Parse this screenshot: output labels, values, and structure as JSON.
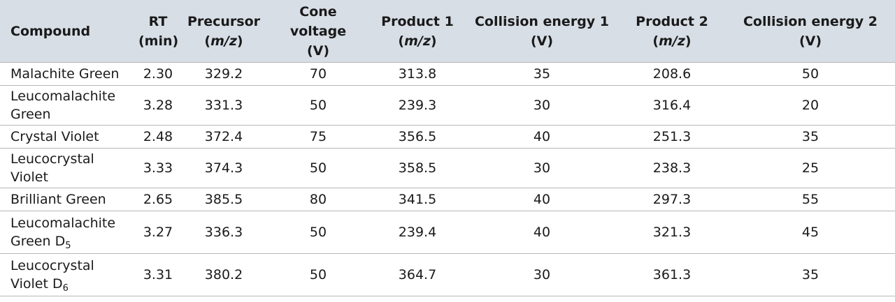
{
  "table": {
    "headers": [
      {
        "line1": "Compound",
        "line2": ""
      },
      {
        "line1": "RT",
        "line2": "(min)"
      },
      {
        "line1": "Precursor",
        "line2_pre": "(",
        "line2_ital": "m/z",
        "line2_post": ")"
      },
      {
        "line1": "Cone voltage",
        "line2": "(V)"
      },
      {
        "line1": "Product 1",
        "line2_pre": "(",
        "line2_ital": "m/z",
        "line2_post": ")"
      },
      {
        "line1": "Collision energy 1",
        "line2": "(V)"
      },
      {
        "line1": "Product 2",
        "line2_pre": "(",
        "line2_ital": "m/z",
        "line2_post": ")"
      },
      {
        "line1": "Collision energy 2",
        "line2": "(V)"
      }
    ],
    "rows": [
      {
        "name_line1": "Malachite Green",
        "name_line2": "",
        "name_sub": "",
        "rt": "2.30",
        "precursor": "329.2",
        "cone": "70",
        "product1": "313.8",
        "ce1": "35",
        "product2": "208.6",
        "ce2": "50"
      },
      {
        "name_line1": "Leucomalachite",
        "name_line2": "Green",
        "name_sub": "",
        "rt": "3.28",
        "precursor": "331.3",
        "cone": "50",
        "product1": "239.3",
        "ce1": "30",
        "product2": "316.4",
        "ce2": "20"
      },
      {
        "name_line1": "Crystal Violet",
        "name_line2": "",
        "name_sub": "",
        "rt": "2.48",
        "precursor": "372.4",
        "cone": "75",
        "product1": "356.5",
        "ce1": "40",
        "product2": "251.3",
        "ce2": "35"
      },
      {
        "name_line1": "Leucocrystal",
        "name_line2": "Violet",
        "name_sub": "",
        "rt": "3.33",
        "precursor": "374.3",
        "cone": "50",
        "product1": "358.5",
        "ce1": "30",
        "product2": "238.3",
        "ce2": "25"
      },
      {
        "name_line1": "Brilliant Green",
        "name_line2": "",
        "name_sub": "",
        "rt": "2.65",
        "precursor": "385.5",
        "cone": "80",
        "product1": "341.5",
        "ce1": "40",
        "product2": "297.3",
        "ce2": "55"
      },
      {
        "name_line1": "Leucomalachite",
        "name_line2": "Green D",
        "name_sub": "5",
        "rt": "3.27",
        "precursor": "336.3",
        "cone": "50",
        "product1": "239.4",
        "ce1": "40",
        "product2": "321.3",
        "ce2": "45"
      },
      {
        "name_line1": "Leucocrystal",
        "name_line2": "Violet D",
        "name_sub": "6",
        "rt": "3.31",
        "precursor": "380.2",
        "cone": "50",
        "product1": "364.7",
        "ce1": "30",
        "product2": "361.3",
        "ce2": "35"
      }
    ]
  },
  "colors": {
    "header_bg": "#d7dee6",
    "rule": "#b7b7b7",
    "text": "#1a1a1a"
  }
}
